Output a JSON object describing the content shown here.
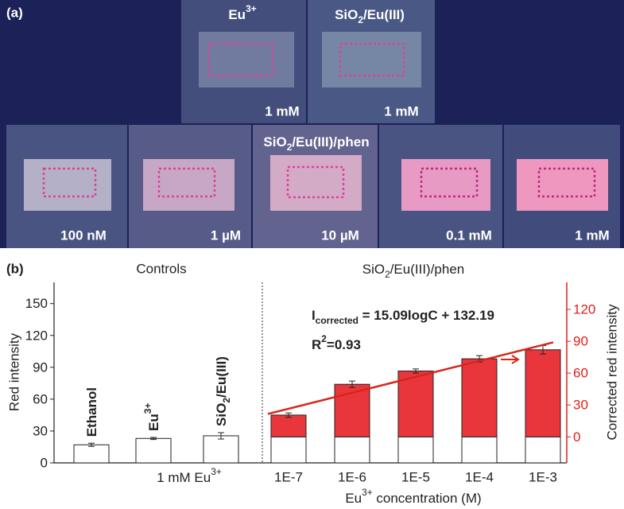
{
  "panel_a": {
    "label": "(a)",
    "top_row": [
      {
        "title": [
          {
            "text": "Eu"
          },
          {
            "text": "3+",
            "sup": true
          }
        ],
        "conc": "1 mM"
      },
      {
        "title": [
          {
            "text": "SiO"
          },
          {
            "text": "2",
            "sub": true
          },
          {
            "text": "/Eu(III)"
          }
        ],
        "conc": "1 mM"
      }
    ],
    "bottom_row": {
      "title": [
        {
          "text": "SiO"
        },
        {
          "text": "2",
          "sub": true
        },
        {
          "text": "/Eu(III)/phen"
        }
      ],
      "samples": [
        "100 nM",
        "1 µM",
        "10 µM",
        "0.1 mM",
        "1 mM"
      ]
    }
  },
  "chart_data": {
    "type": "bar",
    "panel_label": "(b)",
    "controls_label": "Controls",
    "phen_label": [
      {
        "text": "SiO"
      },
      {
        "text": "2",
        "sub": true
      },
      {
        "text": "/Eu(III)/phen"
      }
    ],
    "ylabel": "Red intensity",
    "y2label": "Corrected red intensity",
    "xlabel": [
      {
        "text": "Eu"
      },
      {
        "text": "3+",
        "sup": true
      },
      {
        "text": " concentration (M)"
      }
    ],
    "ylim": [
      0,
      170
    ],
    "yticks": [
      0,
      30,
      60,
      90,
      120,
      150
    ],
    "y2lim": [
      -24.5,
      145.5
    ],
    "y2ticks": [
      0,
      30,
      60,
      90,
      120
    ],
    "y2color": "#e0201b",
    "controls": {
      "categories": [
        [
          {
            "text": "Ethanol"
          }
        ],
        [
          {
            "text": "Eu"
          },
          {
            "text": "3+",
            "sup": true
          }
        ],
        [
          {
            "text": "SiO"
          },
          {
            "text": "2",
            "sub": true
          },
          {
            "text": "/Eu(III)"
          }
        ]
      ],
      "values": [
        17,
        23,
        25.5
      ],
      "errors": [
        1.5,
        1,
        3
      ],
      "color": "#ffffff",
      "group_label": [
        {
          "text": "1 mM Eu"
        },
        {
          "text": "3+",
          "sup": true
        }
      ]
    },
    "phen": {
      "categories": [
        "1E-7",
        "1E-6",
        "1E-5",
        "1E-4",
        "1E-3"
      ],
      "base_values": [
        24.5,
        24.5,
        24.5,
        24.5,
        24.5
      ],
      "values": [
        20.5,
        49.5,
        62,
        73.5,
        82
      ],
      "errors": [
        2,
        3,
        2,
        3,
        4
      ],
      "color": "#e8363c",
      "axis": "y2"
    },
    "fit": {
      "equation": [
        {
          "text": "I"
        },
        {
          "text": "corrected",
          "sub": true
        },
        {
          "text": " = 15.09logC + 132.19"
        }
      ],
      "r2": [
        {
          "text": "R"
        },
        {
          "text": "2",
          "sup": true
        },
        {
          "text": "=0.93"
        }
      ],
      "values": [
        21.6,
        89
      ],
      "color": "#d9261c"
    }
  }
}
